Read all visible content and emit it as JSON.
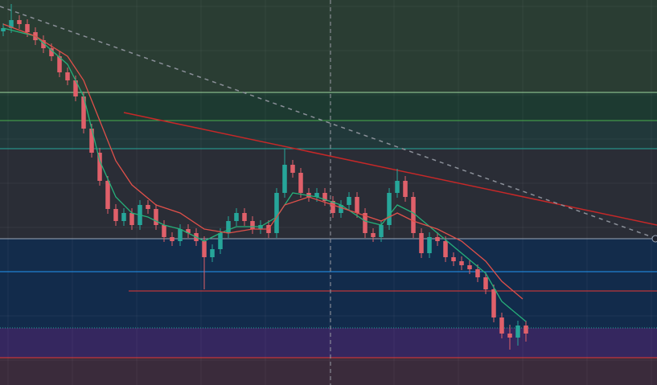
{
  "chart_data": {
    "type": "candlestick",
    "background": "#1e222d",
    "xlim": [
      -0.4,
      81.3
    ],
    "ylim": [
      0,
      479
    ],
    "grid": true,
    "up_color": "#26a69a",
    "down_color": "#e0606a",
    "open": [
      440,
      444,
      454,
      449,
      439,
      429,
      419,
      409,
      389,
      379,
      359,
      319,
      289,
      254,
      219,
      204,
      214,
      199,
      224,
      219,
      199,
      184,
      179,
      194,
      189,
      179,
      159,
      169,
      189,
      204,
      214,
      204,
      194,
      199,
      189,
      239,
      274,
      264,
      239,
      234,
      239,
      229,
      214,
      224,
      234,
      214,
      189,
      184,
      199,
      239,
      254,
      234,
      189,
      164,
      184,
      179,
      159,
      154,
      149,
      144,
      134,
      119,
      84,
      64,
      59,
      74
    ],
    "high": [
      450,
      474,
      460,
      455,
      445,
      435,
      425,
      415,
      395,
      385,
      365,
      325,
      295,
      260,
      225,
      220,
      220,
      230,
      230,
      225,
      205,
      190,
      200,
      200,
      195,
      185,
      175,
      195,
      210,
      220,
      220,
      210,
      205,
      205,
      245,
      294,
      280,
      270,
      245,
      245,
      245,
      235,
      230,
      240,
      240,
      220,
      195,
      205,
      245,
      269,
      260,
      240,
      195,
      190,
      190,
      185,
      165,
      160,
      155,
      150,
      140,
      125,
      90,
      75,
      80,
      80
    ],
    "low": [
      434,
      438,
      443,
      433,
      423,
      413,
      403,
      383,
      373,
      353,
      313,
      283,
      248,
      213,
      198,
      198,
      193,
      193,
      213,
      193,
      178,
      173,
      173,
      183,
      173,
      119,
      153,
      163,
      183,
      198,
      198,
      188,
      188,
      183,
      183,
      233,
      258,
      233,
      228,
      228,
      223,
      208,
      208,
      218,
      208,
      183,
      178,
      178,
      193,
      233,
      228,
      183,
      158,
      158,
      173,
      153,
      148,
      143,
      138,
      128,
      113,
      78,
      58,
      44,
      49,
      54
    ],
    "close": [
      444,
      454,
      449,
      439,
      429,
      419,
      409,
      389,
      379,
      359,
      319,
      289,
      254,
      219,
      204,
      214,
      199,
      224,
      219,
      199,
      184,
      179,
      194,
      189,
      179,
      159,
      169,
      189,
      204,
      214,
      204,
      194,
      199,
      189,
      239,
      274,
      264,
      239,
      234,
      239,
      229,
      214,
      224,
      234,
      214,
      189,
      184,
      199,
      239,
      254,
      234,
      189,
      164,
      184,
      179,
      159,
      154,
      149,
      144,
      134,
      119,
      84,
      64,
      59,
      74,
      64
    ],
    "lines": [
      {
        "color": "#26b07a",
        "x": [
          0,
          4,
          8,
          10,
          12,
          14,
          16,
          18,
          20,
          22,
          25,
          27,
          29,
          32,
          34,
          36,
          39,
          42,
          45,
          47,
          49,
          51,
          54,
          57,
          60,
          62,
          65
        ],
        "values": [
          444,
          434,
          399,
          359,
          279,
          234,
          214,
          209,
          199,
          194,
          179,
          189,
          197,
          197,
          209,
          239,
          234,
          224,
          204,
          199,
          224,
          214,
          189,
          164,
          139,
          104,
          79
        ]
      },
      {
        "color": "#e0504a",
        "x": [
          0,
          4,
          8,
          10,
          12,
          14,
          16,
          19,
          22,
          25,
          28,
          31,
          33,
          35,
          38,
          41,
          44,
          47,
          49,
          51,
          54,
          57,
          60,
          62,
          64.6
        ],
        "values": [
          449,
          434,
          409,
          379,
          329,
          279,
          249,
          224,
          214,
          194,
          189,
          194,
          194,
          224,
          234,
          224,
          214,
          204,
          214,
          204,
          194,
          179,
          154,
          129,
          107
        ]
      }
    ],
    "zones": [
      {
        "from": 364,
        "to": 479,
        "color": "#2a3d33"
      },
      {
        "from": 329,
        "to": 364,
        "color": "#1d3a31"
      },
      {
        "from": 294,
        "to": 329,
        "color": "#21383a"
      },
      {
        "from": 182,
        "to": 294,
        "color": "#2a2d36"
      },
      {
        "from": 141,
        "to": 182,
        "color": "#132c4b"
      },
      {
        "from": 71,
        "to": 141,
        "color": "#122b4b"
      },
      {
        "from": 34,
        "to": 71,
        "color": "#35275f"
      },
      {
        "from": 0,
        "to": 34,
        "color": "#3a2b3b"
      }
    ],
    "levels": [
      {
        "value": 364,
        "color": "#9fd8a0",
        "x_start": -0.4
      },
      {
        "value": 329,
        "color": "#4caf50",
        "x_start": -0.4
      },
      {
        "value": 294,
        "color": "#26a69a",
        "x_start": -0.4
      },
      {
        "value": 182,
        "color": "#9aa6b8",
        "x_start": -0.4
      },
      {
        "value": 141,
        "color": "#2196f3",
        "x_start": -0.4
      },
      {
        "value": 117,
        "color": "#e53935",
        "x_start": 15.6
      },
      {
        "value": 71,
        "color": "#26a69a",
        "x_start": -0.4,
        "dotted": true
      },
      {
        "value": 34,
        "color": "#e53935",
        "x_start": -0.4
      }
    ],
    "trendlines": [
      {
        "x": [
          15,
          81.3
        ],
        "values": [
          339,
          199
        ],
        "color": "#c62828",
        "dashed": false
      },
      {
        "x": [
          -0.4,
          81.3
        ],
        "values": [
          471,
          182
        ],
        "color": "#8a8f98",
        "dashed": true
      }
    ],
    "crosshair_x": 40.7
  }
}
